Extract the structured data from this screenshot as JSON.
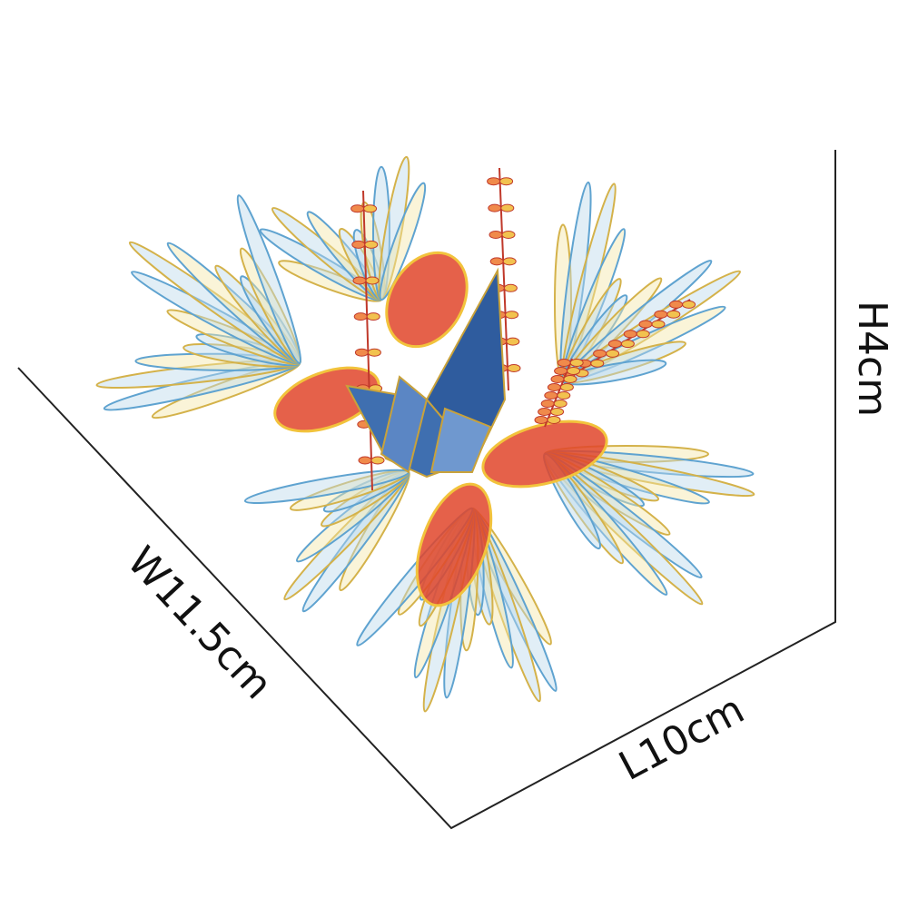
{
  "dimensions": {
    "height": "H4cm",
    "width": "W11.5cm",
    "length": "L10cm"
  }
}
